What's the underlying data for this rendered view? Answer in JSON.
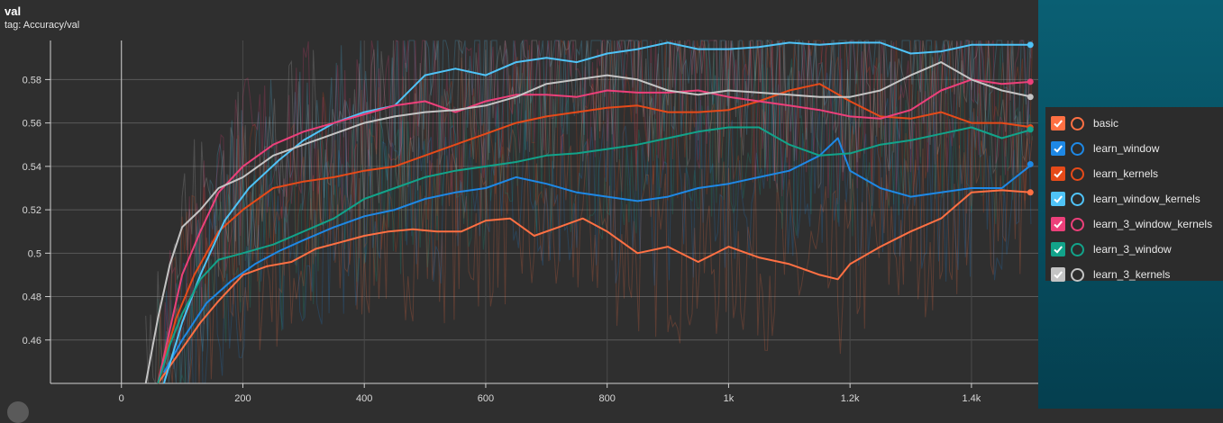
{
  "header": {
    "title": "val",
    "subtitle": "tag: Accuracy/val"
  },
  "legend": [
    {
      "name": "basic",
      "color": "#ff7043"
    },
    {
      "name": "learn_window",
      "color": "#1e88e5"
    },
    {
      "name": "learn_kernels",
      "color": "#e64a19"
    },
    {
      "name": "learn_window_kernels",
      "color": "#4fc3f7"
    },
    {
      "name": "learn_3_window_kernels",
      "color": "#ec407a"
    },
    {
      "name": "learn_3_window",
      "color": "#12a38a"
    },
    {
      "name": "learn_3_kernels",
      "color": "#c4c4c4"
    }
  ],
  "chart_data": {
    "type": "line",
    "title": "val",
    "subtitle": "tag: Accuracy/val",
    "xlim": [
      -200,
      1510
    ],
    "ylim": [
      0.44,
      0.598
    ],
    "xticks": [
      0,
      200,
      400,
      600,
      800,
      1000,
      1200,
      1400
    ],
    "xtick_labels": [
      "0",
      "200",
      "400",
      "600",
      "800",
      "1k",
      "1.2k",
      "1.4k"
    ],
    "yticks": [
      0.46,
      0.48,
      0.5,
      0.52,
      0.54,
      0.56,
      0.58
    ],
    "ytick_labels": [
      "0.46",
      "0.48",
      "0.5",
      "0.52",
      "0.54",
      "0.56",
      "0.58"
    ],
    "grid": true,
    "legend_position": "right",
    "series": [
      {
        "name": "basic",
        "color": "#ff7043",
        "x": [
          60,
          80,
          100,
          130,
          160,
          200,
          240,
          280,
          320,
          360,
          400,
          440,
          480,
          520,
          560,
          600,
          640,
          680,
          720,
          760,
          800,
          850,
          900,
          950,
          1000,
          1050,
          1100,
          1150,
          1180,
          1200,
          1250,
          1300,
          1350,
          1400,
          1450,
          1500
        ],
        "y": [
          0.44,
          0.448,
          0.456,
          0.468,
          0.478,
          0.49,
          0.494,
          0.496,
          0.502,
          0.505,
          0.508,
          0.51,
          0.511,
          0.51,
          0.51,
          0.515,
          0.516,
          0.508,
          0.512,
          0.516,
          0.51,
          0.5,
          0.503,
          0.496,
          0.503,
          0.498,
          0.495,
          0.49,
          0.488,
          0.495,
          0.503,
          0.51,
          0.516,
          0.528,
          0.529,
          0.528
        ]
      },
      {
        "name": "learn_window",
        "color": "#1e88e5",
        "x": [
          70,
          100,
          140,
          180,
          220,
          260,
          300,
          350,
          400,
          450,
          500,
          550,
          600,
          650,
          700,
          750,
          800,
          850,
          900,
          950,
          1000,
          1050,
          1100,
          1150,
          1180,
          1200,
          1250,
          1300,
          1350,
          1400,
          1450,
          1500
        ],
        "y": [
          0.445,
          0.46,
          0.477,
          0.487,
          0.495,
          0.501,
          0.506,
          0.512,
          0.517,
          0.52,
          0.525,
          0.528,
          0.53,
          0.535,
          0.532,
          0.528,
          0.526,
          0.524,
          0.526,
          0.53,
          0.532,
          0.535,
          0.538,
          0.545,
          0.553,
          0.538,
          0.53,
          0.526,
          0.528,
          0.53,
          0.53,
          0.541
        ]
      },
      {
        "name": "learn_kernels",
        "color": "#e64a19",
        "x": [
          60,
          90,
          120,
          160,
          200,
          250,
          300,
          350,
          400,
          450,
          500,
          550,
          600,
          650,
          700,
          750,
          800,
          850,
          900,
          950,
          1000,
          1050,
          1100,
          1150,
          1200,
          1250,
          1300,
          1350,
          1400,
          1450,
          1500
        ],
        "y": [
          0.44,
          0.47,
          0.49,
          0.51,
          0.52,
          0.53,
          0.533,
          0.535,
          0.538,
          0.54,
          0.545,
          0.55,
          0.555,
          0.56,
          0.563,
          0.565,
          0.567,
          0.568,
          0.565,
          0.565,
          0.566,
          0.57,
          0.575,
          0.578,
          0.57,
          0.563,
          0.562,
          0.565,
          0.56,
          0.56,
          0.558
        ]
      },
      {
        "name": "learn_window_kernels",
        "color": "#4fc3f7",
        "x": [
          70,
          100,
          130,
          170,
          210,
          260,
          300,
          350,
          400,
          450,
          500,
          550,
          600,
          650,
          700,
          750,
          800,
          850,
          900,
          950,
          1000,
          1050,
          1100,
          1150,
          1200,
          1250,
          1300,
          1350,
          1400,
          1450,
          1500
        ],
        "y": [
          0.44,
          0.468,
          0.49,
          0.515,
          0.53,
          0.543,
          0.552,
          0.56,
          0.565,
          0.568,
          0.582,
          0.585,
          0.582,
          0.588,
          0.59,
          0.588,
          0.592,
          0.594,
          0.597,
          0.594,
          0.594,
          0.595,
          0.597,
          0.596,
          0.597,
          0.597,
          0.592,
          0.593,
          0.596,
          0.596,
          0.596
        ]
      },
      {
        "name": "learn_3_window_kernels",
        "color": "#ec407a",
        "x": [
          60,
          80,
          100,
          130,
          160,
          200,
          250,
          300,
          350,
          400,
          450,
          500,
          550,
          600,
          650,
          700,
          750,
          800,
          850,
          900,
          950,
          1000,
          1050,
          1100,
          1150,
          1200,
          1250,
          1300,
          1350,
          1400,
          1450,
          1500
        ],
        "y": [
          0.44,
          0.465,
          0.49,
          0.51,
          0.528,
          0.54,
          0.55,
          0.556,
          0.56,
          0.564,
          0.568,
          0.57,
          0.565,
          0.57,
          0.573,
          0.573,
          0.572,
          0.575,
          0.574,
          0.574,
          0.575,
          0.572,
          0.57,
          0.568,
          0.566,
          0.563,
          0.562,
          0.566,
          0.575,
          0.58,
          0.578,
          0.579
        ]
      },
      {
        "name": "learn_3_window",
        "color": "#12a38a",
        "x": [
          60,
          80,
          100,
          130,
          160,
          200,
          250,
          300,
          350,
          400,
          450,
          500,
          550,
          600,
          650,
          700,
          750,
          800,
          850,
          900,
          950,
          1000,
          1050,
          1100,
          1150,
          1200,
          1250,
          1300,
          1350,
          1400,
          1450,
          1500
        ],
        "y": [
          0.44,
          0.458,
          0.472,
          0.488,
          0.497,
          0.5,
          0.504,
          0.51,
          0.516,
          0.525,
          0.53,
          0.535,
          0.538,
          0.54,
          0.542,
          0.545,
          0.546,
          0.548,
          0.55,
          0.553,
          0.556,
          0.558,
          0.558,
          0.55,
          0.545,
          0.546,
          0.55,
          0.552,
          0.555,
          0.558,
          0.553,
          0.557
        ]
      },
      {
        "name": "learn_3_kernels",
        "color": "#c4c4c4",
        "x": [
          40,
          60,
          80,
          100,
          130,
          160,
          200,
          250,
          300,
          350,
          400,
          450,
          500,
          550,
          600,
          650,
          700,
          750,
          800,
          850,
          900,
          950,
          1000,
          1050,
          1100,
          1150,
          1200,
          1250,
          1300,
          1350,
          1400,
          1450,
          1500
        ],
        "y": [
          0.44,
          0.47,
          0.495,
          0.512,
          0.52,
          0.53,
          0.535,
          0.545,
          0.55,
          0.555,
          0.56,
          0.563,
          0.565,
          0.566,
          0.568,
          0.572,
          0.578,
          0.58,
          0.582,
          0.58,
          0.575,
          0.573,
          0.575,
          0.574,
          0.573,
          0.572,
          0.572,
          0.575,
          0.582,
          0.588,
          0.58,
          0.575,
          0.572
        ]
      }
    ]
  }
}
